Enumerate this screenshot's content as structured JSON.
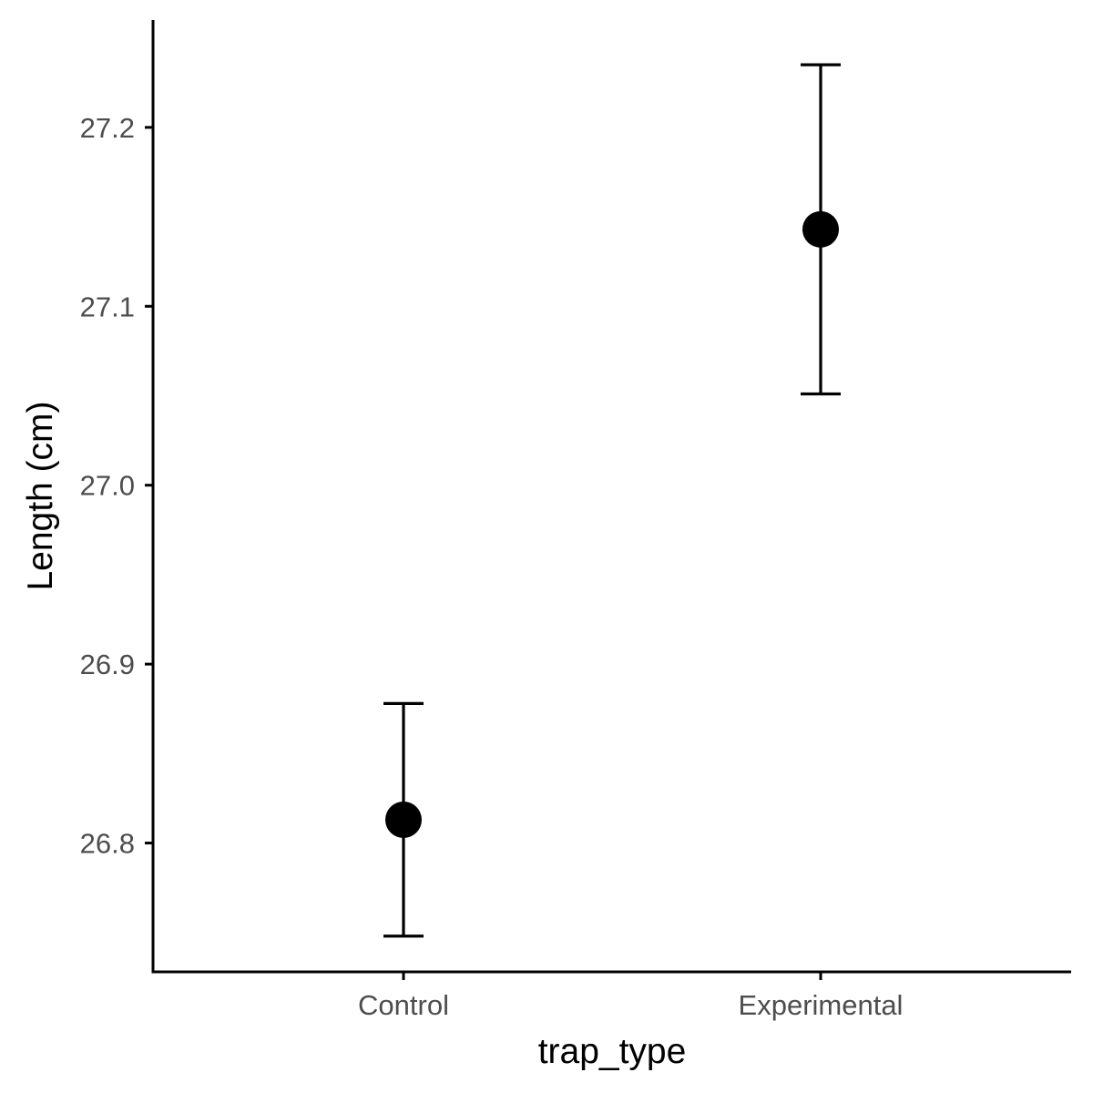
{
  "chart_data": {
    "type": "scatter",
    "subtype": "point-with-errorbars",
    "xlabel": "trap_type",
    "ylabel": "Length (cm)",
    "categories": [
      "Control",
      "Experimental"
    ],
    "points": [
      {
        "category": "Control",
        "mean": 26.813,
        "lower": 26.748,
        "upper": 26.878
      },
      {
        "category": "Experimental",
        "mean": 27.143,
        "lower": 27.051,
        "upper": 27.235
      }
    ],
    "yticks": [
      26.8,
      26.9,
      27.0,
      27.1,
      27.2
    ],
    "ytick_labels": [
      "26.8",
      "26.9",
      "27.0",
      "27.1",
      "27.2"
    ],
    "ylim": [
      26.728,
      27.26
    ],
    "grid": false,
    "legend": "none",
    "colors": {
      "point": "#000000",
      "errorbar": "#000000",
      "tick_text": "#4d4d4d"
    }
  }
}
